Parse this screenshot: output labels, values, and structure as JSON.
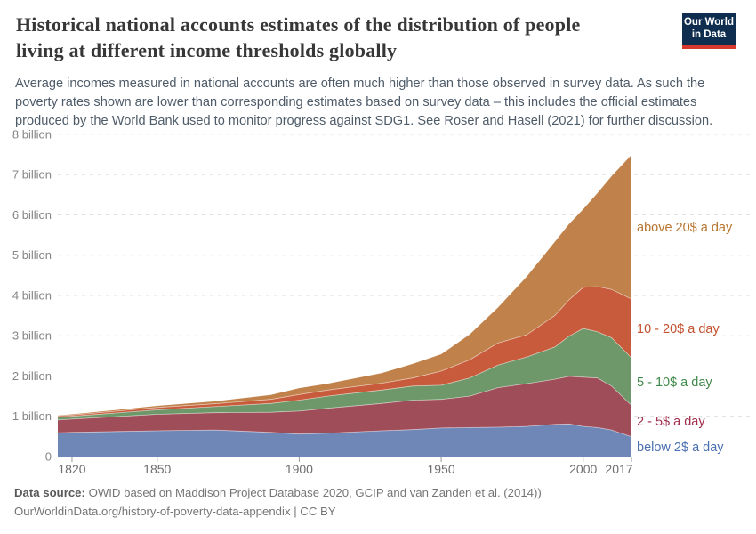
{
  "header": {
    "title_line1": "Historical national accounts estimates of the distribution of people",
    "title_line2": "living at different income thresholds globally",
    "subtitle_lines": [
      "Average incomes measured in national accounts are often much higher than those observed in survey data. As such the",
      "poverty rates shown are lower than corresponding estimates based on survey data – this includes the official estimates",
      "produced by the World Bank used to monitor progress against SDG1. See Roser and Hasell (2021) for further discussion."
    ],
    "logo": {
      "line1": "Our World",
      "line2": "in Data",
      "bg_color": "#0f2d4e",
      "bar_color": "#d7382c"
    }
  },
  "footer": {
    "source_label": "Data source:",
    "source_text": "OWID based on Maddison Project Database 2020, GCIP and van Zanden et al. (2014))",
    "link_line": "OurWorldinData.org/history-of-poverty-data-appendix | CC BY"
  },
  "chart_data": {
    "type": "area",
    "stacked": true,
    "title": "Historical national accounts estimates of the distribution of people living at different income thresholds globally",
    "unit": "people (billions)",
    "grid": "horizontal dashed gridlines at each billion",
    "legend_position": "right, colored text labels",
    "xlim": [
      1815,
      2017
    ],
    "ylim": [
      0,
      8
    ],
    "x": [
      1815,
      1820,
      1850,
      1870,
      1890,
      1900,
      1910,
      1929,
      1940,
      1950,
      1960,
      1970,
      1980,
      1990,
      1995,
      2000,
      2005,
      2010,
      2017
    ],
    "series": [
      {
        "id": "below-2",
        "name": "below 2$ a day",
        "color": "#6e87b7",
        "label_color": "#4a70b0",
        "values": [
          0.59,
          0.6,
          0.64,
          0.66,
          0.6,
          0.56,
          0.58,
          0.64,
          0.67,
          0.71,
          0.72,
          0.73,
          0.75,
          0.8,
          0.81,
          0.75,
          0.72,
          0.66,
          0.49
        ]
      },
      {
        "id": "2-5",
        "name": "2 - 5$ a day",
        "color": "#a04d5a",
        "label_color": "#a02e4c",
        "values": [
          0.32,
          0.33,
          0.41,
          0.43,
          0.5,
          0.57,
          0.62,
          0.68,
          0.73,
          0.71,
          0.78,
          0.98,
          1.06,
          1.12,
          1.18,
          1.22,
          1.23,
          1.09,
          0.78
        ]
      },
      {
        "id": "5-10",
        "name": "5 - 10$ a day",
        "color": "#6e9869",
        "label_color": "#41894a",
        "values": [
          0.07,
          0.07,
          0.11,
          0.15,
          0.22,
          0.27,
          0.3,
          0.33,
          0.35,
          0.35,
          0.45,
          0.56,
          0.66,
          0.8,
          1.0,
          1.21,
          1.15,
          1.2,
          1.18
        ]
      },
      {
        "id": "10-20",
        "name": "10 - 20$ a day",
        "color": "#c85b3c",
        "label_color": "#c4512e",
        "values": [
          0.03,
          0.03,
          0.06,
          0.07,
          0.1,
          0.14,
          0.15,
          0.17,
          0.2,
          0.35,
          0.45,
          0.55,
          0.55,
          0.78,
          0.9,
          1.02,
          1.12,
          1.2,
          1.46
        ]
      },
      {
        "id": "above-20",
        "name": "above 20$ a day",
        "color": "#c0824a",
        "label_color": "#b8742e",
        "values": [
          0.01,
          0.02,
          0.04,
          0.06,
          0.11,
          0.16,
          0.16,
          0.25,
          0.35,
          0.42,
          0.63,
          0.88,
          1.44,
          1.83,
          1.88,
          1.94,
          2.32,
          2.81,
          3.58
        ]
      }
    ],
    "x_ticks": [
      {
        "year": 1820,
        "dx": 0
      },
      {
        "year": 1850,
        "dx": 0
      },
      {
        "year": 1900,
        "dx": 0
      },
      {
        "year": 1950,
        "dx": 0
      },
      {
        "year": 2000,
        "dx": 0
      },
      {
        "year": 2017,
        "dx": -14
      }
    ],
    "y_ticks": [
      {
        "value": 0,
        "label": "0"
      },
      {
        "value": 1,
        "label": "1 billion"
      },
      {
        "value": 2,
        "label": "2 billion"
      },
      {
        "value": 3,
        "label": "3 billion"
      },
      {
        "value": 4,
        "label": "4 billion"
      },
      {
        "value": 5,
        "label": "5 billion"
      },
      {
        "value": 6,
        "label": "6 billion"
      },
      {
        "value": 7,
        "label": "7 billion"
      },
      {
        "value": 8,
        "label": "8 billion"
      }
    ]
  }
}
